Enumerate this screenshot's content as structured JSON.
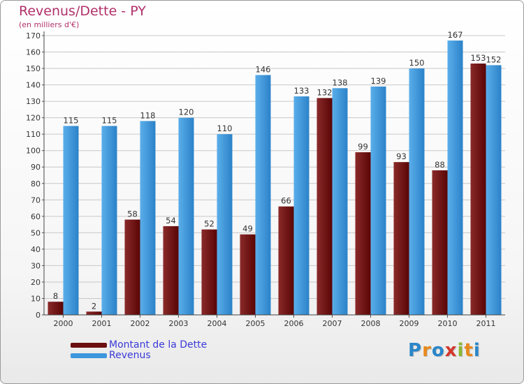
{
  "header": {
    "title": "Revenus/Dette - PY",
    "subtitle": "(en milliers d'€)"
  },
  "colors": {
    "debt": "#6b0f0f",
    "revenue": "#3d97dd",
    "title": "#b0306a",
    "legend_text": "#3a3ad8"
  },
  "chart_data": {
    "type": "bar",
    "title": "Revenus/Dette - PY",
    "ylabel": "(en milliers d'€)",
    "xlabel": "",
    "categories": [
      "2000",
      "2001",
      "2002",
      "2003",
      "2004",
      "2005",
      "2006",
      "2007",
      "2008",
      "2009",
      "2010",
      "2011"
    ],
    "series": [
      {
        "name": "Montant de la Dette",
        "values": [
          8,
          2,
          58,
          54,
          52,
          49,
          66,
          132,
          99,
          93,
          88,
          153
        ]
      },
      {
        "name": "Revenus",
        "values": [
          115,
          115,
          118,
          120,
          110,
          146,
          133,
          138,
          139,
          150,
          167,
          152
        ]
      }
    ],
    "ylim": [
      0,
      170
    ],
    "yticks": [
      0,
      10,
      20,
      30,
      40,
      50,
      60,
      70,
      80,
      90,
      100,
      110,
      120,
      130,
      140,
      150,
      160,
      170
    ],
    "grid": true,
    "legend_position": "bottom-left"
  },
  "legend": {
    "items": [
      {
        "label": "Montant de la Dette",
        "color": "#6b0f0f"
      },
      {
        "label": "Revenus",
        "color": "#3d97dd"
      }
    ]
  },
  "logo": {
    "text": "Proxiti",
    "letters": [
      "P",
      "r",
      "o",
      "x",
      "i",
      "t",
      "i"
    ],
    "letter_colors": [
      "#2a86c9",
      "#e8891c",
      "#2a86c9",
      "#d4372b",
      "#8ab833",
      "#e8891c",
      "#2a86c9"
    ]
  }
}
